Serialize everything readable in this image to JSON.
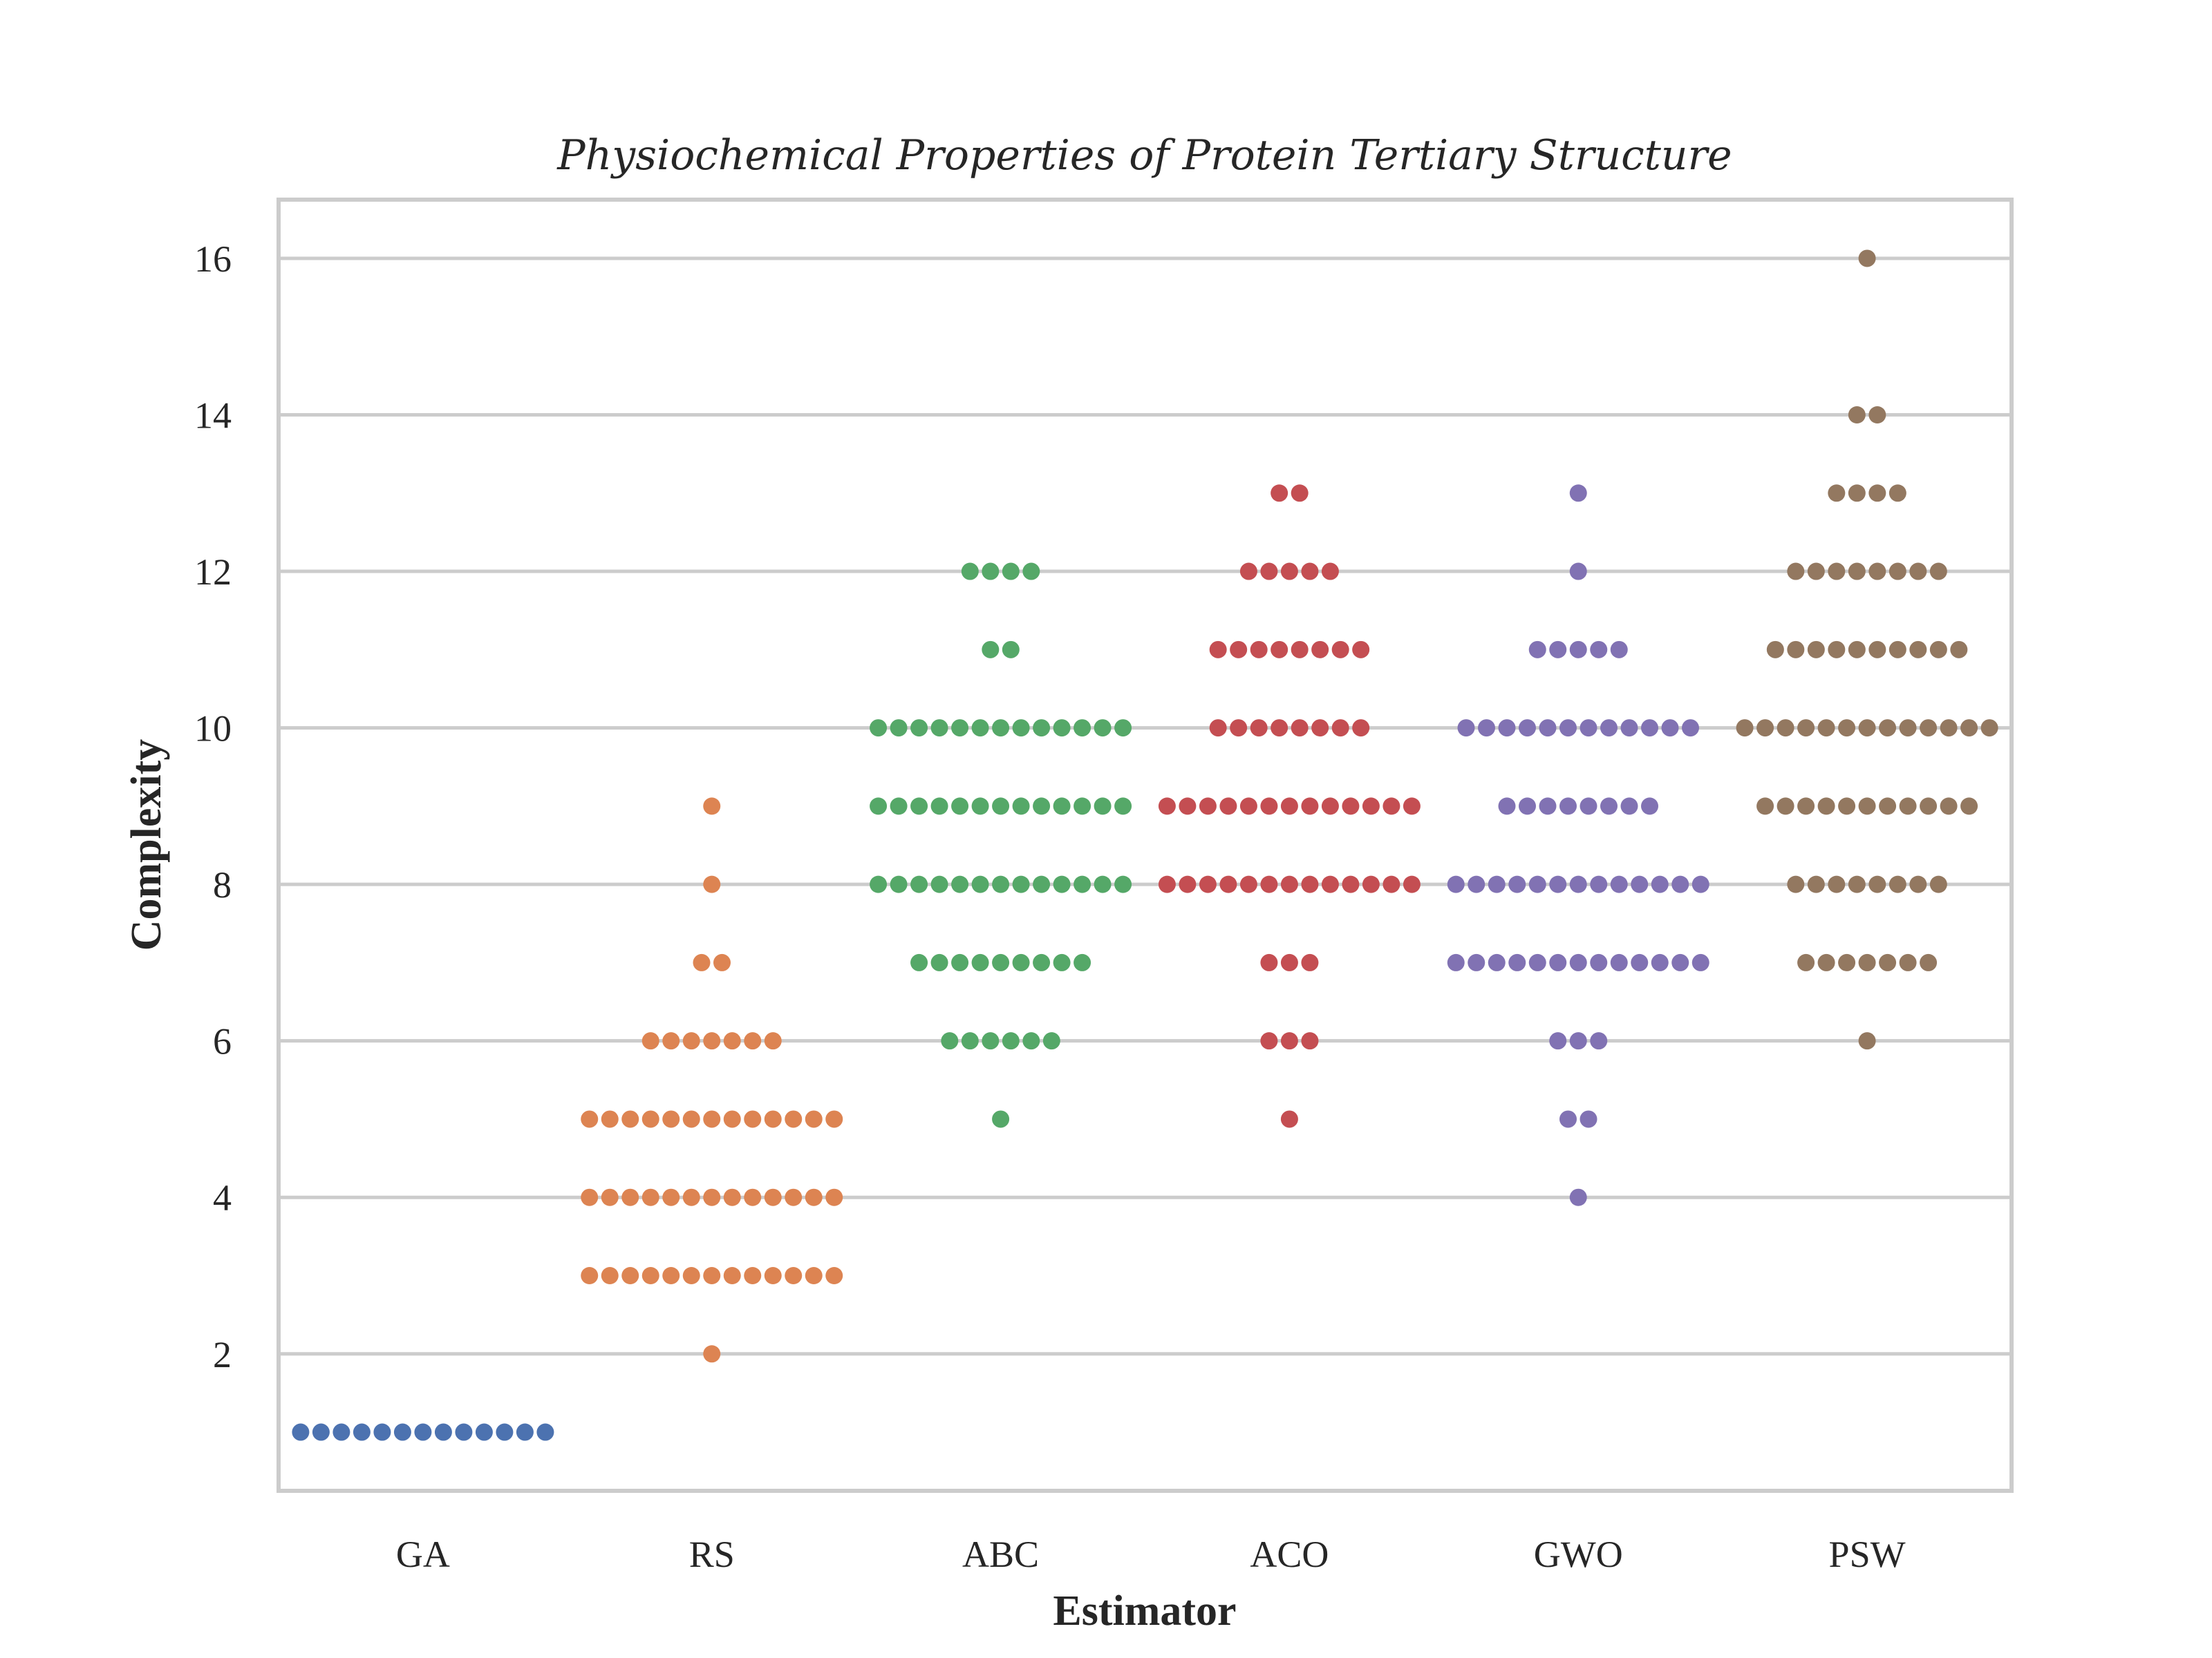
{
  "chart_data": {
    "type": "scatter",
    "subtype": "swarm",
    "title": "Physiochemical Properties of Protein Tertiary Structure",
    "xlabel": "Estimator",
    "ylabel": "Complexity",
    "categories": [
      "GA",
      "RS",
      "ABC",
      "ACO",
      "GWO",
      "PSW"
    ],
    "yticks": [
      2,
      4,
      6,
      8,
      10,
      12,
      14,
      16
    ],
    "ylim": [
      0.25,
      16.75
    ],
    "grid": "horizontal",
    "legend": "none",
    "series": [
      {
        "category": "GA",
        "color": "#4c72b0",
        "counts": {
          "1": 13
        }
      },
      {
        "category": "RS",
        "color": "#dd8452",
        "counts": {
          "2": 1,
          "3": 13,
          "4": 13,
          "5": 13,
          "6": 7,
          "7": 2,
          "8": 1,
          "9": 1
        }
      },
      {
        "category": "ABC",
        "color": "#55a868",
        "counts": {
          "5": 1,
          "6": 6,
          "7": 9,
          "8": 13,
          "9": 13,
          "10": 13,
          "11": 2,
          "12": 4
        }
      },
      {
        "category": "ACO",
        "color": "#c44e52",
        "counts": {
          "5": 1,
          "6": 3,
          "7": 3,
          "8": 13,
          "9": 13,
          "10": 8,
          "11": 8,
          "12": 5,
          "13": 2
        }
      },
      {
        "category": "GWO",
        "color": "#8172b3",
        "counts": {
          "4": 1,
          "5": 2,
          "6": 3,
          "7": 13,
          "8": 13,
          "9": 8,
          "10": 12,
          "11": 5,
          "12": 1,
          "13": 1
        }
      },
      {
        "category": "PSW",
        "color": "#937860",
        "counts": {
          "6": 1,
          "7": 7,
          "8": 8,
          "9": 11,
          "10": 13,
          "11": 10,
          "12": 8,
          "13": 4,
          "14": 2,
          "16": 1
        }
      }
    ]
  }
}
